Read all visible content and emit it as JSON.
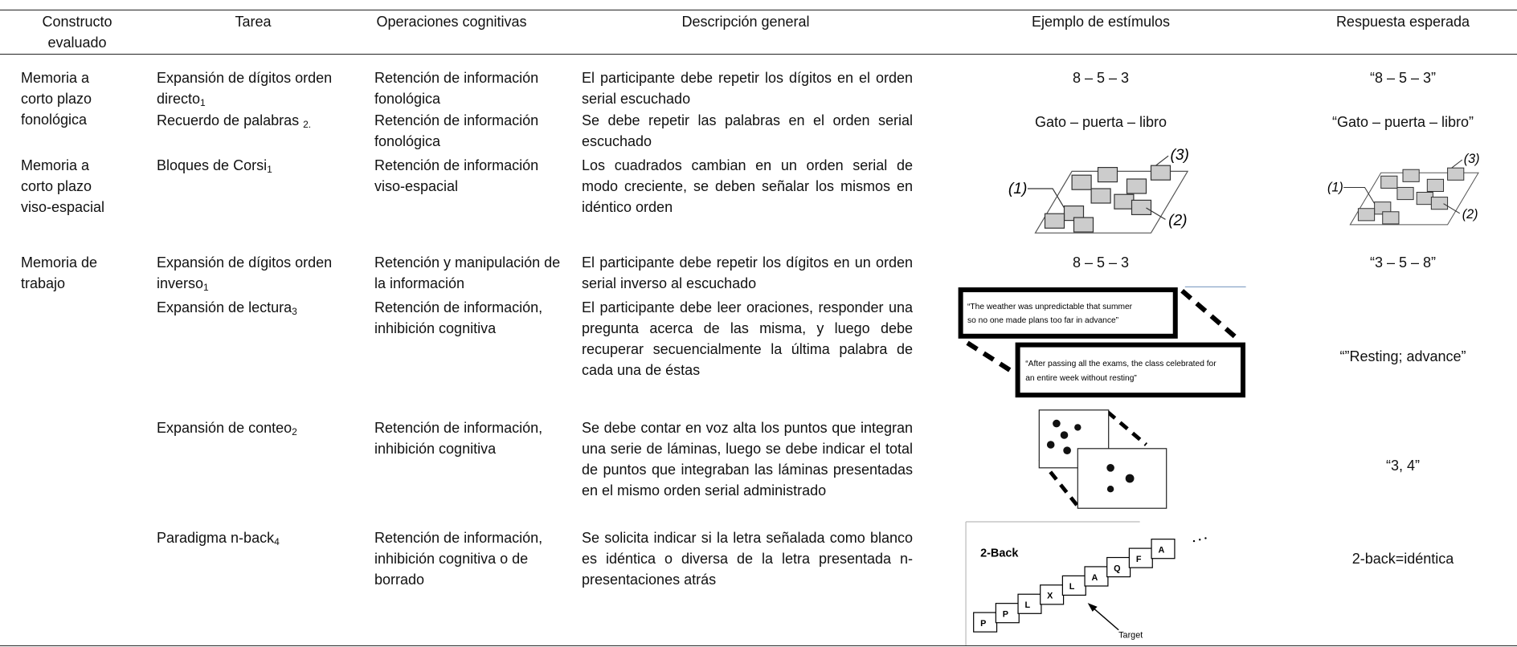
{
  "table": {
    "headers": [
      "Constructo evaluado",
      "Tarea",
      "Operaciones cognitivas",
      "Descripción general",
      "Ejemplo de estímulos",
      "Respuesta esperada"
    ],
    "rows": [
      {
        "construct": "Memoria a corto plazo fonológica",
        "task": "Expansión de dígitos orden directo",
        "task_ref": "1",
        "operations": "Retención de información fonológica",
        "description": "El participante debe repetir los dígitos en el orden serial escuchado",
        "stimulus": "8 – 5 – 3",
        "response": "“8 – 5 – 3”"
      },
      {
        "task": "Recuerdo de palabras",
        "task_ref": "2.",
        "operations": "Retención de información fonológica",
        "description": "Se debe repetir las palabras en el orden serial escuchado",
        "stimulus": "Gato – puerta – libro",
        "response": "“Gato – puerta – libro”"
      },
      {
        "construct": "Memoria a corto plazo viso-espacial",
        "task": "Bloques de Corsi",
        "task_ref": "1",
        "operations": "Retención de información viso-espacial",
        "description": "Los cuadrados cambian en un orden serial de modo creciente, se deben señalar los mismos en idéntico orden",
        "stimulus_labels": [
          "(1)",
          "(2)",
          "(3)"
        ],
        "response_labels": [
          "(1)",
          "(2)",
          "(3)"
        ]
      },
      {
        "construct": "Memoria de trabajo",
        "task": "Expansión de dígitos orden inverso",
        "task_ref": "1",
        "operations": "Retención y manipulación de la información",
        "description": "El participante debe repetir los dígitos en un orden serial inverso al escuchado",
        "stimulus": "8 – 5 – 3",
        "response": "“3 – 5 – 8”"
      },
      {
        "task": "Expansión de lectura",
        "task_ref": "3",
        "operations": "Retención de información, inhibición cognitiva",
        "description": "El participante debe leer oraciones, responder una pregunta acerca de las misma, y luego debe recuperar secuencialmente la última palabra de cada una de éstas",
        "stimulus_sentences": [
          [
            "“The weather was unpredictable that summer",
            "so no one made plans too far in advance”"
          ],
          [
            "“After passing all the exams, the class celebrated for",
            "an entire week without resting”"
          ]
        ],
        "response": "“”Resting; advance”"
      },
      {
        "task": "Expansión de conteo",
        "task_ref": "2",
        "operations": "Retención de información, inhibición cognitiva",
        "description": "Se debe contar en voz alta los puntos que integran una serie de láminas, luego se debe indicar el total de puntos que integraban las láminas presentadas en el mismo orden serial administrado",
        "response": "“3, 4”"
      },
      {
        "task": "Paradigma n-back",
        "task_ref": "4",
        "operations": "Retención de información, inhibición cognitiva o de borrado",
        "description": "Se solicita indicar si la letra señalada como blanco es idéntica o diversa de la letra presentada n-presentaciones atrás",
        "stimulus_title": "2-Back",
        "stimulus_letters": [
          "P",
          "P",
          "L",
          "X",
          "L",
          "A",
          "Q",
          "F",
          "A"
        ],
        "stimulus_target": "Target",
        "response": "2-back=idéntica"
      }
    ]
  }
}
